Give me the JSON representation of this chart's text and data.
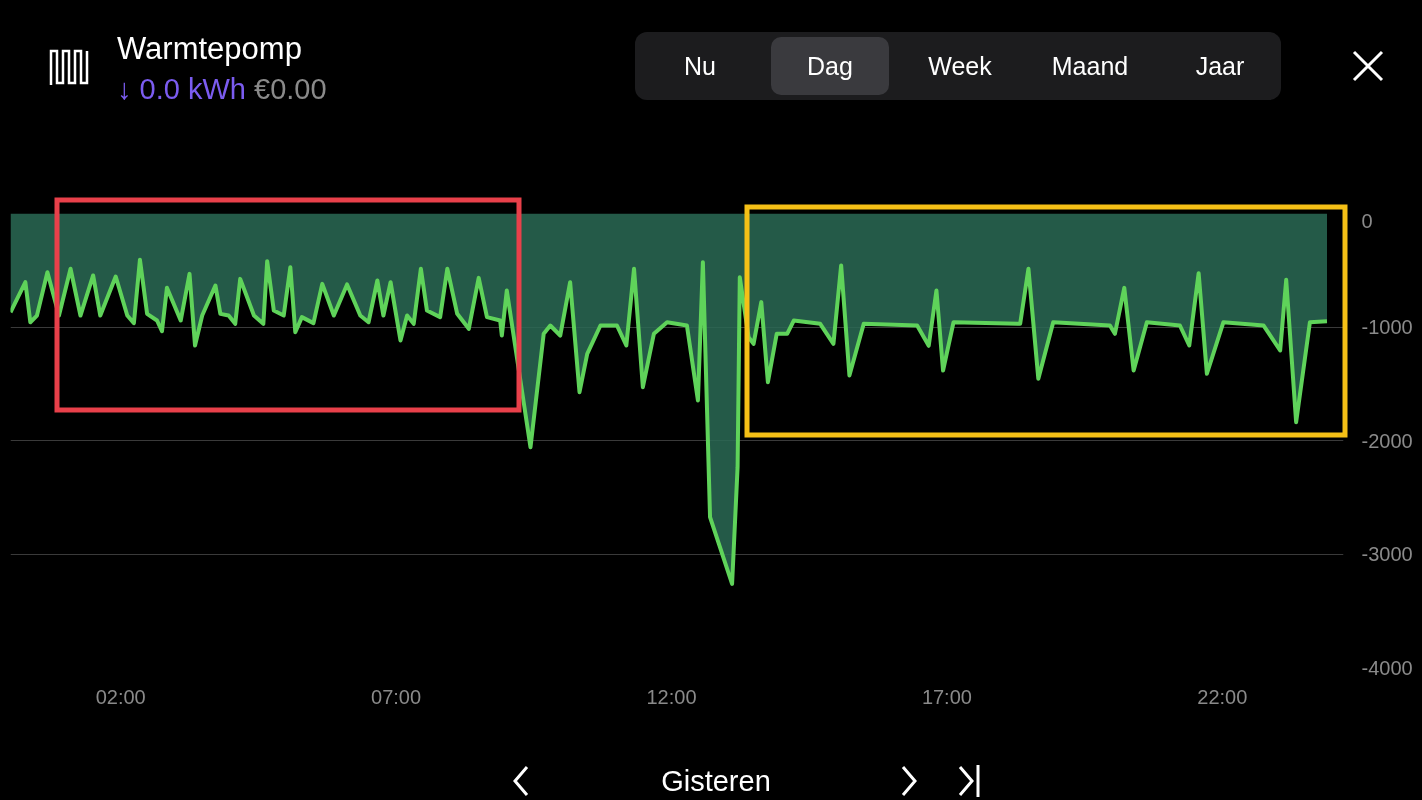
{
  "chart_data": {
    "type": "area",
    "title": "Warmtepomp",
    "subtitle": "↓ 0.0 kWh €0.00",
    "annotations": [
      "Nu",
      "Dag",
      "Week",
      "Maand",
      "Jaar",
      "Gisteren"
    ],
    "x": [
      0.0,
      0.27,
      0.36,
      0.48,
      0.67,
      0.88,
      1.09,
      1.27,
      1.5,
      1.63,
      1.91,
      2.12,
      2.24,
      2.35,
      2.48,
      2.66,
      2.75,
      2.84,
      3.09,
      3.25,
      3.35,
      3.48,
      3.72,
      3.81,
      3.96,
      4.08,
      4.17,
      4.42,
      4.59,
      4.66,
      4.78,
      4.96,
      5.08,
      5.17,
      5.29,
      5.5,
      5.66,
      5.87,
      6.11,
      6.35,
      6.5,
      6.66,
      6.77,
      6.9,
      7.08,
      7.2,
      7.32,
      7.45,
      7.56,
      7.8,
      7.93,
      8.11,
      8.32,
      8.5,
      8.65,
      8.89,
      8.92,
      9.01,
      9.44,
      9.68,
      9.8,
      9.98,
      10.16,
      10.33,
      10.47,
      10.71,
      11.01,
      11.18,
      11.32,
      11.48,
      11.68,
      11.92,
      12.28,
      12.48,
      12.57,
      12.7,
      13.1,
      13.2,
      13.24,
      13.4,
      13.49,
      13.63,
      13.75,
      13.91,
      14.1,
      14.22,
      14.7,
      14.94,
      15.08,
      15.23,
      15.49,
      16.46,
      16.67,
      16.81,
      16.93,
      17.12,
      18.33,
      18.48,
      18.66,
      18.93,
      19.96,
      20.05,
      20.22,
      20.39,
      20.63,
      21.23,
      21.4,
      21.57,
      21.72,
      22.02,
      22.75,
      23.05,
      23.16,
      23.34,
      23.59,
      23.9
    ],
    "series": [
      {
        "color": "#5fd35a",
        "values": [
          -870,
          -605,
          -958,
          -899,
          -517,
          -899,
          -487,
          -899,
          -546,
          -899,
          -555,
          -899,
          -966,
          -408,
          -884,
          -943,
          -1037,
          -655,
          -943,
          -532,
          -1163,
          -899,
          -634,
          -884,
          -899,
          -972,
          -576,
          -899,
          -972,
          -420,
          -855,
          -899,
          -473,
          -1046,
          -913,
          -966,
          -620,
          -899,
          -625,
          -899,
          -958,
          -590,
          -899,
          -605,
          -1119,
          -899,
          -972,
          -487,
          -855,
          -913,
          -487,
          -884,
          -1016,
          -567,
          -913,
          -943,
          -1075,
          -678,
          -2059,
          -1060,
          -987,
          -1075,
          -605,
          -1574,
          -1236,
          -987,
          -987,
          -1163,
          -487,
          -1530,
          -1060,
          -958,
          -987,
          -1647,
          -429,
          -2676,
          -3263,
          -2235,
          -561,
          -1090,
          -1148,
          -781,
          -1486,
          -1060,
          -1060,
          -943,
          -972,
          -1148,
          -458,
          -1427,
          -972,
          -987,
          -1166,
          -678,
          -1383,
          -958,
          -972,
          -487,
          -1456,
          -958,
          -987,
          -1060,
          -655,
          -1383,
          -958,
          -987,
          -1163,
          -526,
          -1412,
          -958,
          -987,
          -1207,
          -584,
          -1839,
          -958,
          -949
        ]
      }
    ],
    "xlim": [
      0,
      24.2
    ],
    "ylim": [
      -4000,
      0
    ],
    "xticks": [
      {
        "value": 2,
        "label": "02:00"
      },
      {
        "value": 7,
        "label": "07:00"
      },
      {
        "value": 12,
        "label": "12:00"
      },
      {
        "value": 17,
        "label": "17:00"
      },
      {
        "value": 22,
        "label": "22:00"
      }
    ],
    "yticks": [
      0,
      -1000,
      -2000,
      -3000,
      -4000
    ],
    "grid": "y",
    "marker": "none",
    "line_style": "solid"
  }
}
